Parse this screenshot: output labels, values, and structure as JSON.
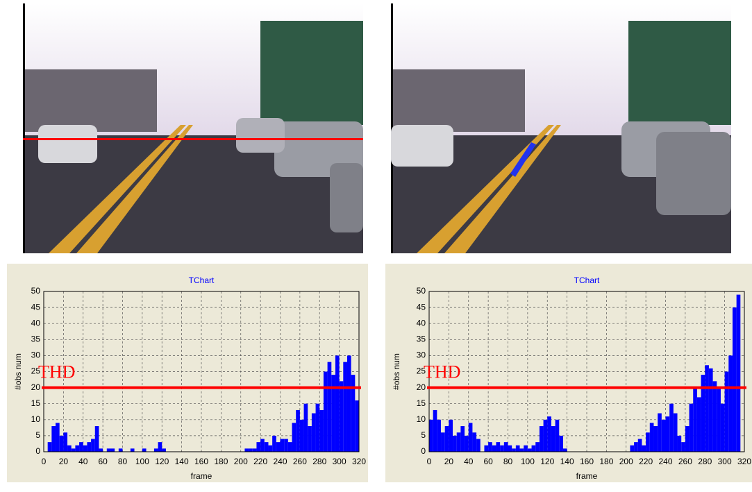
{
  "chart_data": [
    {
      "type": "bar",
      "title": "TChart",
      "xlabel": "frame",
      "ylabel": "#obs num",
      "color": "#0000ff",
      "xlim": [
        0,
        320
      ],
      "ylim": [
        0,
        50
      ],
      "xticks": [
        0,
        20,
        40,
        60,
        80,
        100,
        120,
        140,
        160,
        180,
        200,
        220,
        240,
        260,
        280,
        300,
        320
      ],
      "yticks": [
        0,
        5,
        10,
        15,
        20,
        25,
        30,
        35,
        40,
        45,
        50
      ],
      "grid": true,
      "threshold": {
        "value": 20,
        "label": "THD",
        "color": "#ff0000"
      },
      "x": [
        0,
        4,
        8,
        12,
        16,
        20,
        24,
        28,
        32,
        36,
        40,
        44,
        48,
        52,
        56,
        60,
        64,
        68,
        72,
        76,
        80,
        84,
        88,
        92,
        96,
        100,
        104,
        108,
        112,
        116,
        120,
        124,
        128,
        132,
        136,
        140,
        144,
        148,
        152,
        156,
        160,
        164,
        168,
        172,
        176,
        180,
        184,
        188,
        192,
        196,
        200,
        204,
        208,
        212,
        216,
        220,
        224,
        228,
        232,
        236,
        240,
        244,
        248,
        252,
        256,
        260,
        264,
        268,
        272,
        276,
        280,
        284,
        288,
        292,
        296,
        300,
        304,
        308,
        312,
        316
      ],
      "values": [
        0,
        3,
        8,
        9,
        5,
        6,
        2,
        1,
        2,
        3,
        2,
        3,
        4,
        8,
        1,
        0,
        1,
        1,
        0,
        1,
        0,
        0,
        1,
        0,
        0,
        1,
        0,
        0,
        1,
        3,
        1,
        0,
        0,
        0,
        0,
        0,
        0,
        0,
        0,
        0,
        0,
        0,
        0,
        0,
        0,
        0,
        0,
        0,
        0,
        0,
        0,
        1,
        1,
        1,
        3,
        4,
        3,
        2,
        5,
        3,
        4,
        4,
        3,
        9,
        13,
        10,
        15,
        8,
        12,
        15,
        13,
        25,
        28,
        24,
        30,
        22,
        28,
        30,
        24,
        16
      ]
    },
    {
      "type": "bar",
      "title": "TChart",
      "xlabel": "frame",
      "ylabel": "#obs num",
      "color": "#0000ff",
      "xlim": [
        0,
        320
      ],
      "ylim": [
        0,
        50
      ],
      "xticks": [
        0,
        20,
        40,
        60,
        80,
        100,
        120,
        140,
        160,
        180,
        200,
        220,
        240,
        260,
        280,
        300,
        320
      ],
      "yticks": [
        0,
        5,
        10,
        15,
        20,
        25,
        30,
        35,
        40,
        45,
        50
      ],
      "grid": true,
      "threshold": {
        "value": 20,
        "label": "THD",
        "color": "#ff0000"
      },
      "x": [
        0,
        4,
        8,
        12,
        16,
        20,
        24,
        28,
        32,
        36,
        40,
        44,
        48,
        52,
        56,
        60,
        64,
        68,
        72,
        76,
        80,
        84,
        88,
        92,
        96,
        100,
        104,
        108,
        112,
        116,
        120,
        124,
        128,
        132,
        136,
        140,
        144,
        148,
        152,
        156,
        160,
        164,
        168,
        172,
        176,
        180,
        184,
        188,
        192,
        196,
        200,
        204,
        208,
        212,
        216,
        220,
        224,
        228,
        232,
        236,
        240,
        244,
        248,
        252,
        256,
        260,
        264,
        268,
        272,
        276,
        280,
        284,
        288,
        292,
        296,
        300,
        304,
        308,
        312,
        316
      ],
      "values": [
        10,
        13,
        10,
        6,
        8,
        10,
        5,
        6,
        8,
        5,
        9,
        6,
        4,
        0,
        2,
        3,
        2,
        3,
        2,
        3,
        2,
        1,
        2,
        1,
        2,
        1,
        2,
        3,
        8,
        10,
        11,
        8,
        10,
        5,
        1,
        0,
        0,
        0,
        0,
        0,
        0,
        0,
        0,
        0,
        0,
        0,
        0,
        0,
        0,
        0,
        0,
        2,
        3,
        4,
        2,
        6,
        9,
        8,
        12,
        10,
        11,
        15,
        12,
        5,
        3,
        8,
        15,
        20,
        17,
        24,
        27,
        26,
        22,
        20,
        15,
        25,
        30,
        45,
        49,
        0
      ]
    }
  ]
}
